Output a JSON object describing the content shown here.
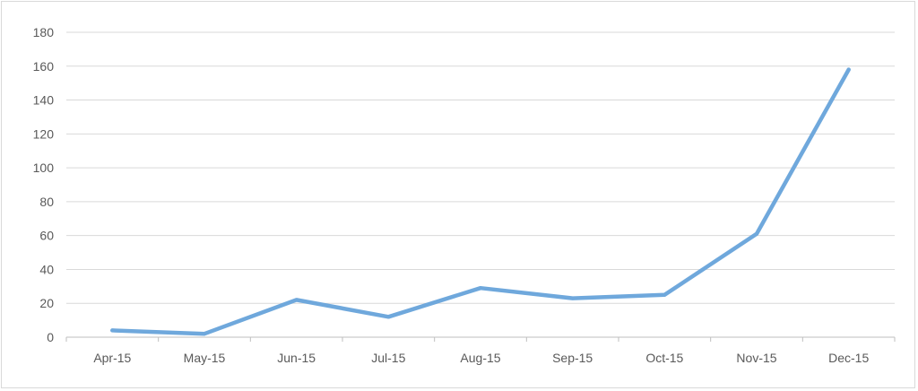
{
  "chart_data": {
    "type": "line",
    "title": "",
    "xlabel": "",
    "ylabel": "",
    "categories": [
      "Apr-15",
      "May-15",
      "Jun-15",
      "Jul-15",
      "Aug-15",
      "Sep-15",
      "Oct-15",
      "Nov-15",
      "Dec-15"
    ],
    "series": [
      {
        "values": [
          4,
          2,
          22,
          12,
          29,
          23,
          25,
          61,
          158
        ],
        "color": "#6fa8dc"
      }
    ],
    "ylim": [
      0,
      180
    ],
    "yticks": [
      0,
      20,
      40,
      60,
      80,
      100,
      120,
      140,
      160,
      180
    ],
    "grid": true,
    "legend": "none"
  }
}
